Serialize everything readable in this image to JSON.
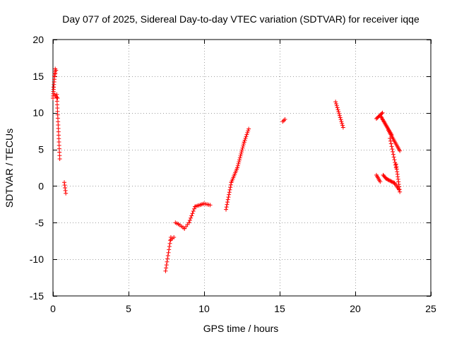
{
  "chart_data": {
    "type": "scatter",
    "title": "Day 077 of 2025, Sidereal Day-to-day VTEC variation (SDTVAR) for receiver iqqe",
    "xlabel": "GPS time / hours",
    "ylabel": "SDTVAR / TECUs",
    "xlim": [
      0,
      25
    ],
    "ylim": [
      -15,
      20
    ],
    "xticks": [
      0,
      5,
      10,
      15,
      20,
      25
    ],
    "yticks": [
      -15,
      -10,
      -5,
      0,
      5,
      10,
      15,
      20
    ],
    "xtick_labels": [
      "0",
      "5",
      "10",
      "15",
      "20",
      "25"
    ],
    "ytick_labels": [
      "-15",
      "-10",
      "-5",
      "0",
      "5",
      "10",
      "15",
      "20"
    ],
    "grid": true,
    "marker": "plus",
    "color": "#ff0000",
    "segments": [
      {
        "x0": 0.0,
        "y0": 12.0,
        "x1": 0.05,
        "y1": 13.5,
        "n": 6
      },
      {
        "x0": 0.05,
        "y0": 13.5,
        "x1": 0.15,
        "y1": 16.0,
        "n": 8
      },
      {
        "x0": 0.1,
        "y0": 15.0,
        "x1": 0.2,
        "y1": 15.8,
        "n": 3
      },
      {
        "x0": 0.12,
        "y0": 12.5,
        "x1": 0.3,
        "y1": 12.0,
        "n": 4
      },
      {
        "x0": 0.25,
        "y0": 12.5,
        "x1": 0.45,
        "y1": 3.7,
        "n": 20
      },
      {
        "x0": 0.75,
        "y0": 0.5,
        "x1": 0.85,
        "y1": -1.0,
        "n": 5
      },
      {
        "x0": 7.45,
        "y0": -11.6,
        "x1": 7.8,
        "y1": -7.0,
        "n": 12
      },
      {
        "x0": 7.8,
        "y0": -7.3,
        "x1": 8.0,
        "y1": -7.0,
        "n": 3
      },
      {
        "x0": 8.1,
        "y0": -5.0,
        "x1": 8.3,
        "y1": -5.2,
        "n": 3
      },
      {
        "x0": 8.3,
        "y0": -5.2,
        "x1": 8.7,
        "y1": -5.8,
        "n": 5
      },
      {
        "x0": 8.7,
        "y0": -5.8,
        "x1": 9.0,
        "y1": -5.0,
        "n": 4
      },
      {
        "x0": 9.0,
        "y0": -5.0,
        "x1": 9.4,
        "y1": -2.8,
        "n": 8
      },
      {
        "x0": 9.4,
        "y0": -2.8,
        "x1": 10.0,
        "y1": -2.4,
        "n": 8
      },
      {
        "x0": 10.0,
        "y0": -2.4,
        "x1": 10.4,
        "y1": -2.6,
        "n": 5
      },
      {
        "x0": 11.45,
        "y0": -3.2,
        "x1": 11.8,
        "y1": 0.5,
        "n": 12
      },
      {
        "x0": 11.8,
        "y0": 0.5,
        "x1": 12.2,
        "y1": 2.5,
        "n": 10
      },
      {
        "x0": 12.2,
        "y0": 2.5,
        "x1": 12.65,
        "y1": 6.0,
        "n": 14
      },
      {
        "x0": 12.65,
        "y0": 6.0,
        "x1": 12.95,
        "y1": 7.8,
        "n": 8
      },
      {
        "x0": 15.2,
        "y0": 8.8,
        "x1": 15.35,
        "y1": 9.1,
        "n": 3
      },
      {
        "x0": 18.7,
        "y0": 11.5,
        "x1": 19.2,
        "y1": 8.0,
        "n": 14
      },
      {
        "x0": 21.4,
        "y0": 9.2,
        "x1": 21.8,
        "y1": 10.0,
        "n": 8
      },
      {
        "x0": 21.7,
        "y0": 9.5,
        "x1": 22.4,
        "y1": 7.0,
        "n": 18
      },
      {
        "x0": 22.2,
        "y0": 7.6,
        "x1": 22.95,
        "y1": 4.8,
        "n": 16
      },
      {
        "x0": 22.3,
        "y0": 6.5,
        "x1": 22.7,
        "y1": 2.5,
        "n": 12
      },
      {
        "x0": 22.7,
        "y0": 3.0,
        "x1": 22.95,
        "y1": -0.8,
        "n": 12
      },
      {
        "x0": 21.4,
        "y0": 1.5,
        "x1": 21.65,
        "y1": 0.6,
        "n": 6
      },
      {
        "x0": 21.85,
        "y0": 1.5,
        "x1": 22.05,
        "y1": 1.0,
        "n": 5
      },
      {
        "x0": 22.05,
        "y0": 1.0,
        "x1": 22.6,
        "y1": 0.4,
        "n": 10
      },
      {
        "x0": 22.6,
        "y0": 0.4,
        "x1": 22.9,
        "y1": -0.5,
        "n": 6
      }
    ]
  }
}
